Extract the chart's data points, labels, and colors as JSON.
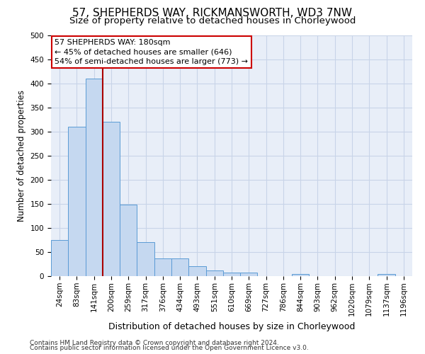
{
  "title": "57, SHEPHERDS WAY, RICKMANSWORTH, WD3 7NW",
  "subtitle": "Size of property relative to detached houses in Chorleywood",
  "xlabel": "Distribution of detached houses by size in Chorleywood",
  "ylabel": "Number of detached properties",
  "footnote1": "Contains HM Land Registry data © Crown copyright and database right 2024.",
  "footnote2": "Contains public sector information licensed under the Open Government Licence v3.0.",
  "bar_labels": [
    "24sqm",
    "83sqm",
    "141sqm",
    "200sqm",
    "259sqm",
    "317sqm",
    "376sqm",
    "434sqm",
    "493sqm",
    "551sqm",
    "610sqm",
    "669sqm",
    "727sqm",
    "786sqm",
    "844sqm",
    "903sqm",
    "962sqm",
    "1020sqm",
    "1079sqm",
    "1137sqm",
    "1196sqm"
  ],
  "bar_values": [
    75,
    310,
    410,
    320,
    148,
    70,
    37,
    37,
    20,
    12,
    7,
    7,
    0,
    0,
    5,
    0,
    0,
    0,
    0,
    5,
    0
  ],
  "bar_color": "#c5d8f0",
  "bar_edge_color": "#5b9bd5",
  "vline_x": 2.5,
  "annotation_text": "57 SHEPHERDS WAY: 180sqm\n← 45% of detached houses are smaller (646)\n54% of semi-detached houses are larger (773) →",
  "annotation_box_color": "#ffffff",
  "annotation_box_edge": "#cc0000",
  "vline_color": "#aa0000",
  "ylim": [
    0,
    500
  ],
  "yticks": [
    0,
    50,
    100,
    150,
    200,
    250,
    300,
    350,
    400,
    450,
    500
  ],
  "grid_color": "#c8d4e8",
  "bg_color": "#e8eef8",
  "title_fontsize": 11,
  "subtitle_fontsize": 9.5,
  "xlabel_fontsize": 9,
  "ylabel_fontsize": 8.5,
  "tick_fontsize": 7.5,
  "annotation_fontsize": 8,
  "footnote_fontsize": 6.5
}
